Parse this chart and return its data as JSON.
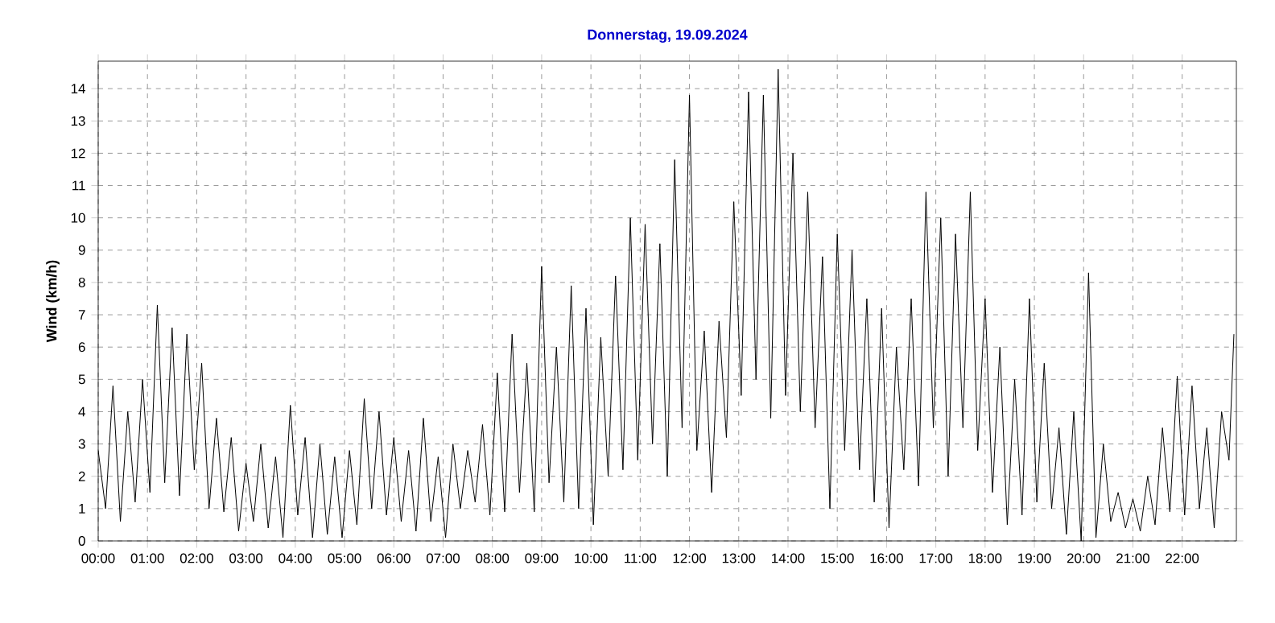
{
  "chart_data": {
    "type": "line",
    "title": "Donnerstag, 19.09.2024",
    "ylabel": "Wind  (km/h)",
    "xlim": [
      0,
      23.1
    ],
    "ylim": [
      0,
      14.85
    ],
    "xticks": [
      {
        "value": 0,
        "label": "00:00"
      },
      {
        "value": 1,
        "label": "01:00"
      },
      {
        "value": 2,
        "label": "02:00"
      },
      {
        "value": 3,
        "label": "03:00"
      },
      {
        "value": 4,
        "label": "04:00"
      },
      {
        "value": 5,
        "label": "05:00"
      },
      {
        "value": 6,
        "label": "06:00"
      },
      {
        "value": 7,
        "label": "07:00"
      },
      {
        "value": 8,
        "label": "08:00"
      },
      {
        "value": 9,
        "label": "09:00"
      },
      {
        "value": 10,
        "label": "10:00"
      },
      {
        "value": 11,
        "label": "11:00"
      },
      {
        "value": 12,
        "label": "12:00"
      },
      {
        "value": 13,
        "label": "13:00"
      },
      {
        "value": 14,
        "label": "14:00"
      },
      {
        "value": 15,
        "label": "15:00"
      },
      {
        "value": 16,
        "label": "16:00"
      },
      {
        "value": 17,
        "label": "17:00"
      },
      {
        "value": 18,
        "label": "18:00"
      },
      {
        "value": 19,
        "label": "19:00"
      },
      {
        "value": 20,
        "label": "20:00"
      },
      {
        "value": 21,
        "label": "21:00"
      },
      {
        "value": 22,
        "label": "22:00"
      }
    ],
    "yticks": [
      0,
      1,
      2,
      3,
      4,
      5,
      6,
      7,
      8,
      9,
      10,
      11,
      12,
      13,
      14
    ],
    "grid": true,
    "marker": "none",
    "line_style": "solid",
    "x": [
      0,
      0.15,
      0.3,
      0.45,
      0.6,
      0.75,
      0.9,
      1.05,
      1.2,
      1.35,
      1.5,
      1.65,
      1.8,
      1.95,
      2.1,
      2.25,
      2.4,
      2.55,
      2.7,
      2.85,
      3.0,
      3.15,
      3.3,
      3.45,
      3.6,
      3.75,
      3.9,
      4.05,
      4.2,
      4.35,
      4.5,
      4.65,
      4.8,
      4.95,
      5.1,
      5.25,
      5.4,
      5.55,
      5.7,
      5.85,
      6.0,
      6.15,
      6.3,
      6.45,
      6.6,
      6.75,
      6.9,
      7.05,
      7.2,
      7.35,
      7.5,
      7.65,
      7.8,
      7.95,
      8.1,
      8.25,
      8.4,
      8.55,
      8.7,
      8.85,
      9.0,
      9.15,
      9.3,
      9.45,
      9.6,
      9.75,
      9.9,
      10.05,
      10.2,
      10.35,
      10.5,
      10.65,
      10.8,
      10.95,
      11.1,
      11.25,
      11.4,
      11.55,
      11.7,
      11.85,
      12.0,
      12.15,
      12.3,
      12.45,
      12.6,
      12.75,
      12.9,
      13.05,
      13.2,
      13.35,
      13.5,
      13.65,
      13.8,
      13.95,
      14.1,
      14.25,
      14.4,
      14.55,
      14.7,
      14.85,
      15.0,
      15.15,
      15.3,
      15.45,
      15.6,
      15.75,
      15.9,
      16.05,
      16.2,
      16.35,
      16.5,
      16.65,
      16.8,
      16.95,
      17.1,
      17.25,
      17.4,
      17.55,
      17.7,
      17.85,
      18.0,
      18.15,
      18.3,
      18.45,
      18.6,
      18.75,
      18.9,
      19.05,
      19.2,
      19.35,
      19.5,
      19.65,
      19.8,
      19.95,
      20.1,
      20.25,
      20.4,
      20.55,
      20.7,
      20.85,
      21.0,
      21.15,
      21.3,
      21.45,
      21.6,
      21.75,
      21.9,
      22.05,
      22.2,
      22.35,
      22.5,
      22.65,
      22.8,
      22.95,
      23.05
    ],
    "series": [
      {
        "color": "#000000",
        "values": [
          2.8,
          1.0,
          4.8,
          0.6,
          4.0,
          1.2,
          5.0,
          1.5,
          7.3,
          1.8,
          6.6,
          1.4,
          6.4,
          2.2,
          5.5,
          1.0,
          3.8,
          0.9,
          3.2,
          0.3,
          2.4,
          0.6,
          3.0,
          0.4,
          2.6,
          0.1,
          4.2,
          0.8,
          3.2,
          0.1,
          3.0,
          0.2,
          2.6,
          0.1,
          2.8,
          0.5,
          4.4,
          1.0,
          4.0,
          0.8,
          3.2,
          0.6,
          2.8,
          0.3,
          3.8,
          0.6,
          2.6,
          0.1,
          3.0,
          1.0,
          2.8,
          1.2,
          3.6,
          0.8,
          5.2,
          0.9,
          6.4,
          1.5,
          5.5,
          0.9,
          8.5,
          1.8,
          6.0,
          1.2,
          7.9,
          1.0,
          7.2,
          0.5,
          6.3,
          2.0,
          8.2,
          2.2,
          10.0,
          2.5,
          9.8,
          3.0,
          9.2,
          2.0,
          11.8,
          3.5,
          13.8,
          2.8,
          6.5,
          1.5,
          6.8,
          3.2,
          10.5,
          4.5,
          13.9,
          5.0,
          13.8,
          3.8,
          14.6,
          4.5,
          12.0,
          4.0,
          10.8,
          3.5,
          8.8,
          1.0,
          9.5,
          2.8,
          9.0,
          2.2,
          7.5,
          1.2,
          7.2,
          0.4,
          6.0,
          2.2,
          7.5,
          1.7,
          10.8,
          3.5,
          10.0,
          2.0,
          9.5,
          3.5,
          10.8,
          2.8,
          7.5,
          1.5,
          6.0,
          0.5,
          5.0,
          0.8,
          7.5,
          1.2,
          5.5,
          1.0,
          3.5,
          0.2,
          4.0,
          0.0,
          8.3,
          0.1,
          3.0,
          0.6,
          1.5,
          0.4,
          1.3,
          0.3,
          2.0,
          0.5,
          3.5,
          0.9,
          5.1,
          0.8,
          4.8,
          1.0,
          3.5,
          0.4,
          4.0,
          2.5,
          6.4
        ]
      }
    ]
  }
}
